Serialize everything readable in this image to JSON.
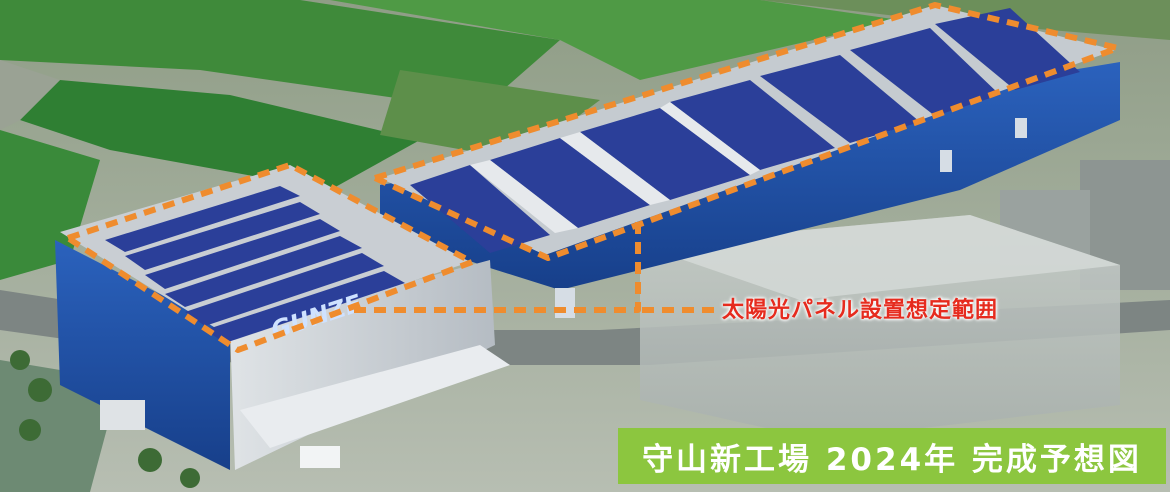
{
  "annotation": {
    "label": "太陽光パネル設置想定範囲",
    "color": "#e62b1e",
    "outline_color": "#ef8c2e"
  },
  "caption": {
    "text": "守山新工場 2024年 完成予想図",
    "text_color": "#ffffff",
    "band_color": "#8cc63f"
  },
  "building": {
    "logo_text": "GUNZE",
    "wall_color": "#1e4fa6",
    "roof_color": "#c9ced3",
    "panel_color": "#2b3f99"
  }
}
